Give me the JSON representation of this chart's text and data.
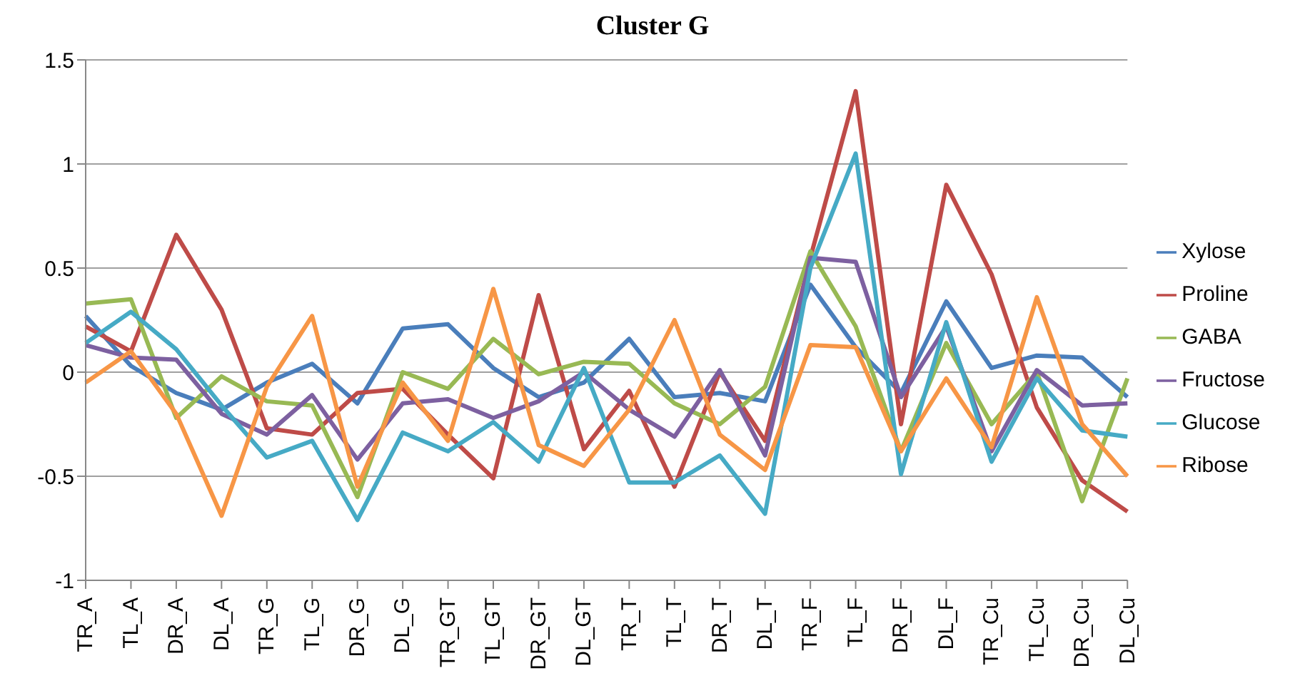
{
  "chart_data": {
    "type": "line",
    "title": "Cluster G",
    "categories": [
      "TR_A",
      "TL_A",
      "DR_A",
      "DL_A",
      "TR_G",
      "TL_G",
      "DR_G",
      "DL_G",
      "TR_GT",
      "TL_GT",
      "DR_GT",
      "DL_GT",
      "TR_T",
      "TL_T",
      "DR_T",
      "DL_T",
      "TR_F",
      "TL_F",
      "DR_F",
      "DL_F",
      "TR_Cu",
      "TL_Cu",
      "DR_Cu",
      "DL_Cu"
    ],
    "series": [
      {
        "name": "Xylose",
        "color": "#4a7ebb",
        "values": [
          0.27,
          0.03,
          -0.1,
          -0.18,
          -0.05,
          0.04,
          -0.15,
          0.21,
          0.23,
          0.02,
          -0.12,
          -0.05,
          0.16,
          -0.12,
          -0.1,
          -0.14,
          0.42,
          0.12,
          -0.1,
          0.34,
          0.02,
          0.08,
          0.07,
          -0.12
        ]
      },
      {
        "name": "Proline",
        "color": "#be4b48",
        "values": [
          0.22,
          0.1,
          0.66,
          0.3,
          -0.27,
          -0.3,
          -0.1,
          -0.08,
          -0.3,
          -0.51,
          0.37,
          -0.37,
          -0.09,
          -0.55,
          0.0,
          -0.33,
          0.55,
          1.35,
          -0.25,
          0.9,
          0.47,
          -0.17,
          -0.52,
          -0.67
        ]
      },
      {
        "name": "GABA",
        "color": "#98b954",
        "values": [
          0.33,
          0.35,
          -0.22,
          -0.02,
          -0.14,
          -0.16,
          -0.6,
          0.0,
          -0.08,
          0.16,
          -0.01,
          0.05,
          0.04,
          -0.15,
          -0.25,
          -0.07,
          0.58,
          0.22,
          -0.38,
          0.14,
          -0.25,
          0.0,
          -0.62,
          -0.03
        ]
      },
      {
        "name": "Fructose",
        "color": "#7d60a0",
        "values": [
          0.13,
          0.07,
          0.06,
          -0.2,
          -0.3,
          -0.11,
          -0.42,
          -0.15,
          -0.13,
          -0.22,
          -0.14,
          0.0,
          -0.18,
          -0.31,
          0.01,
          -0.4,
          0.55,
          0.53,
          -0.12,
          0.22,
          -0.38,
          0.01,
          -0.16,
          -0.15
        ]
      },
      {
        "name": "Glucose",
        "color": "#46aac5",
        "values": [
          0.14,
          0.29,
          0.11,
          -0.16,
          -0.41,
          -0.33,
          -0.71,
          -0.29,
          -0.38,
          -0.24,
          -0.43,
          0.02,
          -0.53,
          -0.53,
          -0.4,
          -0.68,
          0.5,
          1.05,
          -0.49,
          0.24,
          -0.43,
          -0.03,
          -0.28,
          -0.31
        ]
      },
      {
        "name": "Ribose",
        "color": "#f79646",
        "values": [
          -0.05,
          0.1,
          -0.2,
          -0.69,
          -0.07,
          0.27,
          -0.55,
          -0.05,
          -0.33,
          0.4,
          -0.35,
          -0.45,
          -0.18,
          0.25,
          -0.3,
          -0.47,
          0.13,
          0.12,
          -0.38,
          -0.03,
          -0.36,
          0.36,
          -0.25,
          -0.5
        ]
      }
    ],
    "ylim": [
      -1,
      1.5
    ],
    "yticks": [
      -1,
      -0.5,
      0,
      0.5,
      1,
      1.5
    ],
    "grid": "y",
    "legend": "right",
    "marker": "none",
    "line_style": "solid"
  }
}
